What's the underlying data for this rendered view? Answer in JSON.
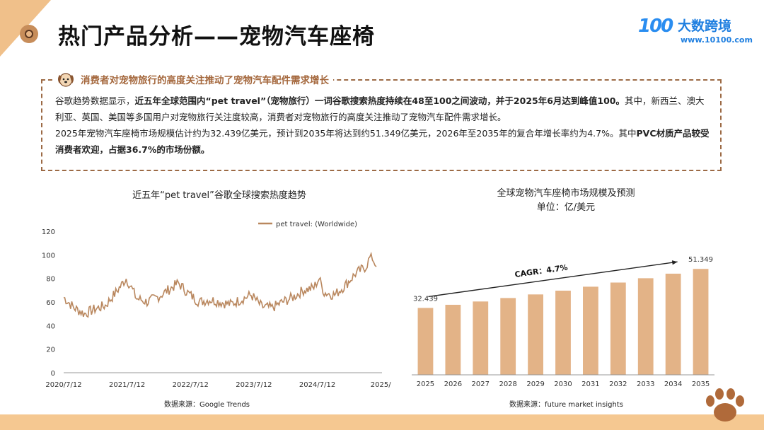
{
  "header": {
    "title": "热门产品分析——宠物汽车座椅",
    "logo_mark": "100",
    "logo_name": "大数跨境",
    "logo_url": "www.10100.com"
  },
  "info": {
    "heading": "消费者对宠物旅行的高度关注推动了宠物汽车配件需求增长",
    "p1_a": "谷歌趋势数据显示，",
    "p1_b": "近五年全球范围内“pet travel”（宠物旅行）一词谷歌搜索热度持续在48至100之间波动，并于2025年6月达到峰值100。",
    "p1_c": "其中，新西兰、澳大利亚、英国、美国等多国用户对宠物旅行关注度较高，消费者对宠物旅行的高度关注推动了宠物汽车配件需求增长。",
    "p2_a": "2025年宠物汽车座椅市场规模估计约为32.439亿美元，预计到2035年将达到约51.349亿美元，2026年至2035年的复合年增长率约为4.7%。其中",
    "p2_b": "PVC材质产品较受消费者欢迎，占据36.7%的市场份额。"
  },
  "left_chart": {
    "title": "近五年“pet travel”谷歌全球搜索热度趋势",
    "source": "数据来源：Google Trends"
  },
  "right_chart": {
    "title": "全球宠物汽车座椅市场规模及预测",
    "subtitle": "单位：亿/美元",
    "source": "数据来源：future market insights",
    "cagr_label": "CAGR：4.7%"
  },
  "colors": {
    "accent": "#c18a5c",
    "bar": "#e3b387",
    "line": "#b9875e",
    "dashed_border": "#9c6a45"
  },
  "chart_data": [
    {
      "type": "line",
      "title": "近五年“pet travel”谷歌全球搜索热度趋势",
      "series": [
        {
          "name": "pet travel: (Worldwide)",
          "x": [
            "2020/7/12",
            "2020/9/12",
            "2020/11/12",
            "2021/1/12",
            "2021/3/12",
            "2021/5/12",
            "2021/7/12",
            "2021/8/12",
            "2021/9/12",
            "2021/11/12",
            "2022/1/12",
            "2022/3/12",
            "2022/5/12",
            "2022/7/12",
            "2022/9/12",
            "2022/11/12",
            "2023/1/12",
            "2023/3/12",
            "2023/5/12",
            "2023/7/12",
            "2023/9/12",
            "2023/11/12",
            "2024/1/12",
            "2024/3/12",
            "2024/5/12",
            "2024/7/12",
            "2024/8/12",
            "2024/9/12",
            "2024/11/12",
            "2025/1/12",
            "2025/3/12",
            "2025/5/12",
            "2025/6/12",
            "2025/7/12"
          ],
          "values": [
            64,
            55,
            50,
            54,
            57,
            68,
            80,
            72,
            63,
            60,
            64,
            70,
            76,
            67,
            60,
            62,
            60,
            58,
            62,
            66,
            56,
            55,
            60,
            64,
            70,
            72,
            80,
            68,
            66,
            74,
            84,
            90,
            100,
            90
          ]
        }
      ],
      "x_ticks": [
        "2020/7/12",
        "2021/7/12",
        "2022/7/12",
        "2023/7/12",
        "2024/7/12",
        "2025/"
      ],
      "y_ticks": [
        0,
        20,
        40,
        60,
        80,
        100,
        120
      ],
      "ylim": [
        0,
        120
      ],
      "legend": "top"
    },
    {
      "type": "bar",
      "title": "全球宠物汽车座椅市场规模及预测",
      "categories": [
        "2025",
        "2026",
        "2027",
        "2028",
        "2029",
        "2030",
        "2031",
        "2032",
        "2033",
        "2034",
        "2035"
      ],
      "values": [
        32.439,
        33.96,
        35.56,
        37.23,
        38.98,
        40.81,
        42.73,
        44.74,
        46.84,
        49.04,
        51.349
      ],
      "labeled": {
        "2025": "32.439",
        "2035": "51.349"
      },
      "ylim": [
        0,
        60
      ],
      "annotation": "CAGR：4.7%"
    }
  ]
}
